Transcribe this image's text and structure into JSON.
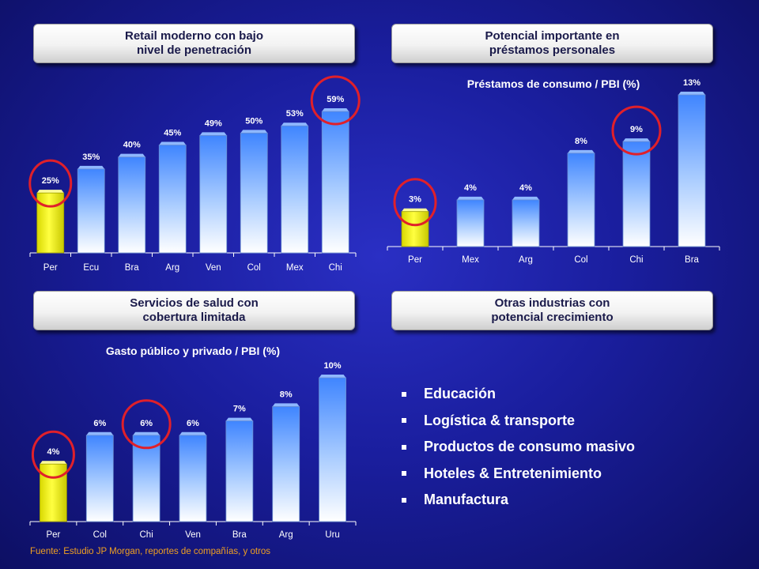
{
  "panels": [
    {
      "title_line1": "Retail moderno con bajo",
      "title_line2": "nivel de penetración"
    },
    {
      "title_line1": "Potencial importante en",
      "title_line2": "préstamos personales"
    },
    {
      "title_line1": "Servicios de salud con",
      "title_line2": "cobertura limitada"
    },
    {
      "title_line1": "Otras industrias con",
      "title_line2": "potencial crecimiento"
    }
  ],
  "chart_data": [
    {
      "type": "bar",
      "title": "",
      "categories": [
        "Per",
        "Ecu",
        "Bra",
        "Arg",
        "Ven",
        "Col",
        "Mex",
        "Chi"
      ],
      "values": [
        25,
        35,
        40,
        45,
        49,
        50,
        53,
        59
      ],
      "value_labels": [
        "25%",
        "35%",
        "40%",
        "45%",
        "49%",
        "50%",
        "53%",
        "59%"
      ],
      "ylim": [
        0,
        60
      ],
      "highlight_bar": "Per",
      "circled": [
        "Per",
        "Chi"
      ],
      "grid": false
    },
    {
      "type": "bar",
      "title": "Préstamos de consumo / PBI (%)",
      "categories": [
        "Per",
        "Mex",
        "Arg",
        "Col",
        "Chi",
        "Bra"
      ],
      "values": [
        3,
        4,
        4,
        8,
        9,
        13
      ],
      "value_labels": [
        "3%",
        "4%",
        "4%",
        "8%",
        "9%",
        "13%"
      ],
      "ylim": [
        0,
        13
      ],
      "highlight_bar": "Per",
      "circled": [
        "Per",
        "Chi"
      ],
      "grid": false
    },
    {
      "type": "bar",
      "title": "Gasto público y privado / PBI (%)",
      "categories": [
        "Per",
        "Col",
        "Chi",
        "Ven",
        "Bra",
        "Arg",
        "Uru"
      ],
      "values": [
        4,
        6,
        6,
        6,
        7,
        8,
        10
      ],
      "value_labels": [
        "4%",
        "6%",
        "6%",
        "6%",
        "7%",
        "8%",
        "10%"
      ],
      "ylim": [
        0,
        10
      ],
      "highlight_bar": "Per",
      "circled": [
        "Per",
        "Chi"
      ],
      "grid": false
    }
  ],
  "industries": [
    "Educación",
    "Logística & transporte",
    "Productos de consumo masivo",
    "Hoteles & Entretenimiento",
    "Manufactura"
  ],
  "source": "Fuente: Estudio JP Morgan, reportes de compañías, y otros",
  "colors": {
    "highlight": "#ffff40",
    "bar_top": "#3f85ff",
    "bar_bottom": "#ffffff",
    "circle": "#e0202a",
    "text": "#ffffff"
  }
}
